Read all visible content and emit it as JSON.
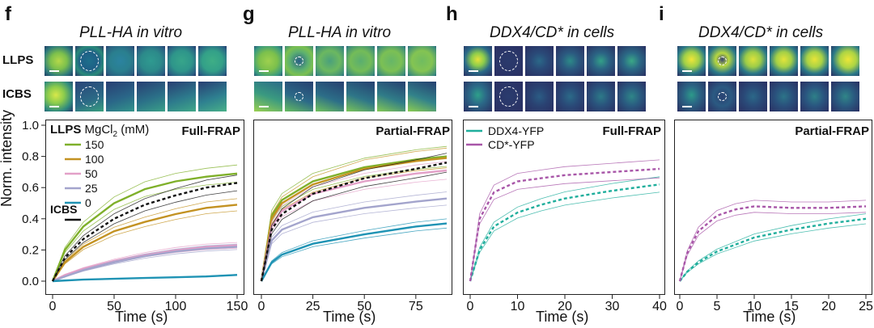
{
  "panels": [
    {
      "letter": "f",
      "title": "PLL-HA in vitro",
      "frap": "Full-FRAP"
    },
    {
      "letter": "g",
      "title": "PLL-HA in vitro",
      "frap": "Partial-FRAP"
    },
    {
      "letter": "h",
      "title": "DDX4/CD* in cells",
      "frap": "Full-FRAP"
    },
    {
      "letter": "i",
      "title": "DDX4/CD* in cells",
      "frap": "Partial-FRAP"
    }
  ],
  "rows": {
    "llps": "LLPS",
    "icbs": "ICBS"
  },
  "legend_f": {
    "header_bold": "LLPS",
    "header_rest": " MgCl",
    "header_sub": "2",
    "header_unit": " (mM)",
    "items": [
      "150",
      "100",
      "50",
      "25",
      "0"
    ],
    "icbs": "ICBS"
  },
  "legend_h": [
    "DDX4-YFP",
    "CD*-YFP"
  ],
  "xlabel": "Time (s)",
  "ylabel": "Norm. intensity",
  "colors": {
    "c150": "#7fb02a",
    "c100": "#c39222",
    "c50": "#e3a0c8",
    "c25": "#a3a4cc",
    "c0": "#1f93b4",
    "icbs": "#111111",
    "ddx4": "#1fae9c",
    "cd": "#a856a8"
  },
  "chart_data": [
    {
      "panel": "f",
      "type": "line",
      "title": "Full-FRAP",
      "xlabel": "Time (s)",
      "ylabel": "Norm. intensity",
      "xlim": [
        0,
        150
      ],
      "ylim": [
        0,
        1.0
      ],
      "xticks": [
        0,
        50,
        100,
        150
      ],
      "yticks": [
        0.0,
        0.2,
        0.4,
        0.6,
        0.8,
        1.0
      ],
      "series": [
        {
          "name": "150",
          "color": "#7fb02a",
          "x": [
            0,
            10,
            25,
            50,
            75,
            100,
            125,
            150
          ],
          "y": [
            0,
            0.2,
            0.35,
            0.5,
            0.59,
            0.64,
            0.67,
            0.69
          ]
        },
        {
          "name": "100",
          "color": "#c39222",
          "x": [
            0,
            10,
            25,
            50,
            75,
            100,
            125,
            150
          ],
          "y": [
            0,
            0.12,
            0.22,
            0.32,
            0.38,
            0.43,
            0.47,
            0.49
          ]
        },
        {
          "name": "50",
          "color": "#e3a0c8",
          "x": [
            0,
            10,
            25,
            50,
            75,
            100,
            125,
            150
          ],
          "y": [
            0,
            0.04,
            0.08,
            0.13,
            0.17,
            0.2,
            0.22,
            0.23
          ]
        },
        {
          "name": "25",
          "color": "#a3a4cc",
          "x": [
            0,
            10,
            25,
            50,
            75,
            100,
            125,
            150
          ],
          "y": [
            0,
            0.03,
            0.07,
            0.12,
            0.16,
            0.19,
            0.21,
            0.22
          ]
        },
        {
          "name": "0",
          "color": "#1f93b4",
          "x": [
            0,
            25,
            50,
            75,
            100,
            125,
            150
          ],
          "y": [
            0,
            0.01,
            0.015,
            0.02,
            0.025,
            0.03,
            0.04
          ]
        },
        {
          "name": "ICBS",
          "color": "#111111",
          "x": [
            0,
            10,
            25,
            50,
            75,
            100,
            125,
            150
          ],
          "y": [
            0,
            0.15,
            0.27,
            0.4,
            0.49,
            0.55,
            0.6,
            0.63
          ]
        }
      ]
    },
    {
      "panel": "g",
      "type": "line",
      "title": "Partial-FRAP",
      "xlabel": "Time (s)",
      "ylabel": "Norm. intensity",
      "xlim": [
        0,
        90
      ],
      "ylim": [
        0,
        1.0
      ],
      "xticks": [
        0,
        25,
        50,
        75
      ],
      "yticks": [
        0.0,
        0.2,
        0.4,
        0.6,
        0.8,
        1.0
      ],
      "series": [
        {
          "name": "150",
          "color": "#7fb02a",
          "x": [
            0,
            5,
            10,
            25,
            50,
            75,
            90
          ],
          "y": [
            0,
            0.42,
            0.52,
            0.64,
            0.73,
            0.78,
            0.8
          ]
        },
        {
          "name": "100",
          "color": "#c39222",
          "x": [
            0,
            5,
            10,
            25,
            50,
            75,
            90
          ],
          "y": [
            0,
            0.4,
            0.5,
            0.62,
            0.72,
            0.77,
            0.79
          ]
        },
        {
          "name": "50",
          "color": "#e3a0c8",
          "x": [
            0,
            5,
            10,
            25,
            50,
            75,
            90
          ],
          "y": [
            0,
            0.35,
            0.45,
            0.56,
            0.64,
            0.69,
            0.71
          ]
        },
        {
          "name": "25",
          "color": "#a3a4cc",
          "x": [
            0,
            5,
            10,
            25,
            50,
            75,
            90
          ],
          "y": [
            0,
            0.26,
            0.33,
            0.41,
            0.47,
            0.51,
            0.53
          ]
        },
        {
          "name": "0",
          "color": "#1f93b4",
          "x": [
            0,
            5,
            10,
            25,
            50,
            75,
            90
          ],
          "y": [
            0,
            0.12,
            0.17,
            0.24,
            0.3,
            0.35,
            0.37
          ]
        },
        {
          "name": "ICBS",
          "color": "#111111",
          "x": [
            0,
            5,
            10,
            25,
            50,
            75,
            90
          ],
          "y": [
            0,
            0.33,
            0.43,
            0.56,
            0.66,
            0.72,
            0.76
          ]
        }
      ]
    },
    {
      "panel": "h",
      "type": "line",
      "title": "Full-FRAP",
      "xlabel": "Time (s)",
      "ylabel": "Norm. intensity",
      "xlim": [
        0,
        40
      ],
      "ylim": [
        0,
        1.0
      ],
      "xticks": [
        0,
        10,
        20,
        30,
        40
      ],
      "yticks": [
        0.0,
        0.2,
        0.4,
        0.6,
        0.8,
        1.0
      ],
      "series": [
        {
          "name": "DDX4-YFP",
          "color": "#1fae9c",
          "x": [
            0,
            2,
            5,
            10,
            15,
            20,
            30,
            40
          ],
          "y": [
            0,
            0.2,
            0.35,
            0.44,
            0.49,
            0.53,
            0.58,
            0.62
          ]
        },
        {
          "name": "CD*-YFP",
          "color": "#a856a8",
          "x": [
            0,
            2,
            5,
            10,
            15,
            20,
            30,
            40
          ],
          "y": [
            0,
            0.4,
            0.57,
            0.64,
            0.66,
            0.68,
            0.7,
            0.72
          ]
        }
      ]
    },
    {
      "panel": "i",
      "type": "line",
      "title": "Partial-FRAP",
      "xlabel": "Time (s)",
      "ylabel": "Norm. intensity",
      "xlim": [
        0,
        25
      ],
      "ylim": [
        0,
        1.0
      ],
      "xticks": [
        0,
        5,
        10,
        15,
        20,
        25
      ],
      "yticks": [
        0.0,
        0.2,
        0.4,
        0.6,
        0.8,
        1.0
      ],
      "series": [
        {
          "name": "DDX4-YFP",
          "color": "#1fae9c",
          "x": [
            0,
            1,
            2.5,
            5,
            10,
            15,
            20,
            25
          ],
          "y": [
            0,
            0.06,
            0.12,
            0.19,
            0.28,
            0.33,
            0.37,
            0.4
          ]
        },
        {
          "name": "CD*-YFP",
          "color": "#a856a8",
          "x": [
            0,
            1,
            2.5,
            5,
            7.5,
            10,
            15,
            20,
            25
          ],
          "y": [
            0,
            0.18,
            0.32,
            0.42,
            0.46,
            0.48,
            0.47,
            0.47,
            0.48
          ]
        }
      ]
    }
  ]
}
